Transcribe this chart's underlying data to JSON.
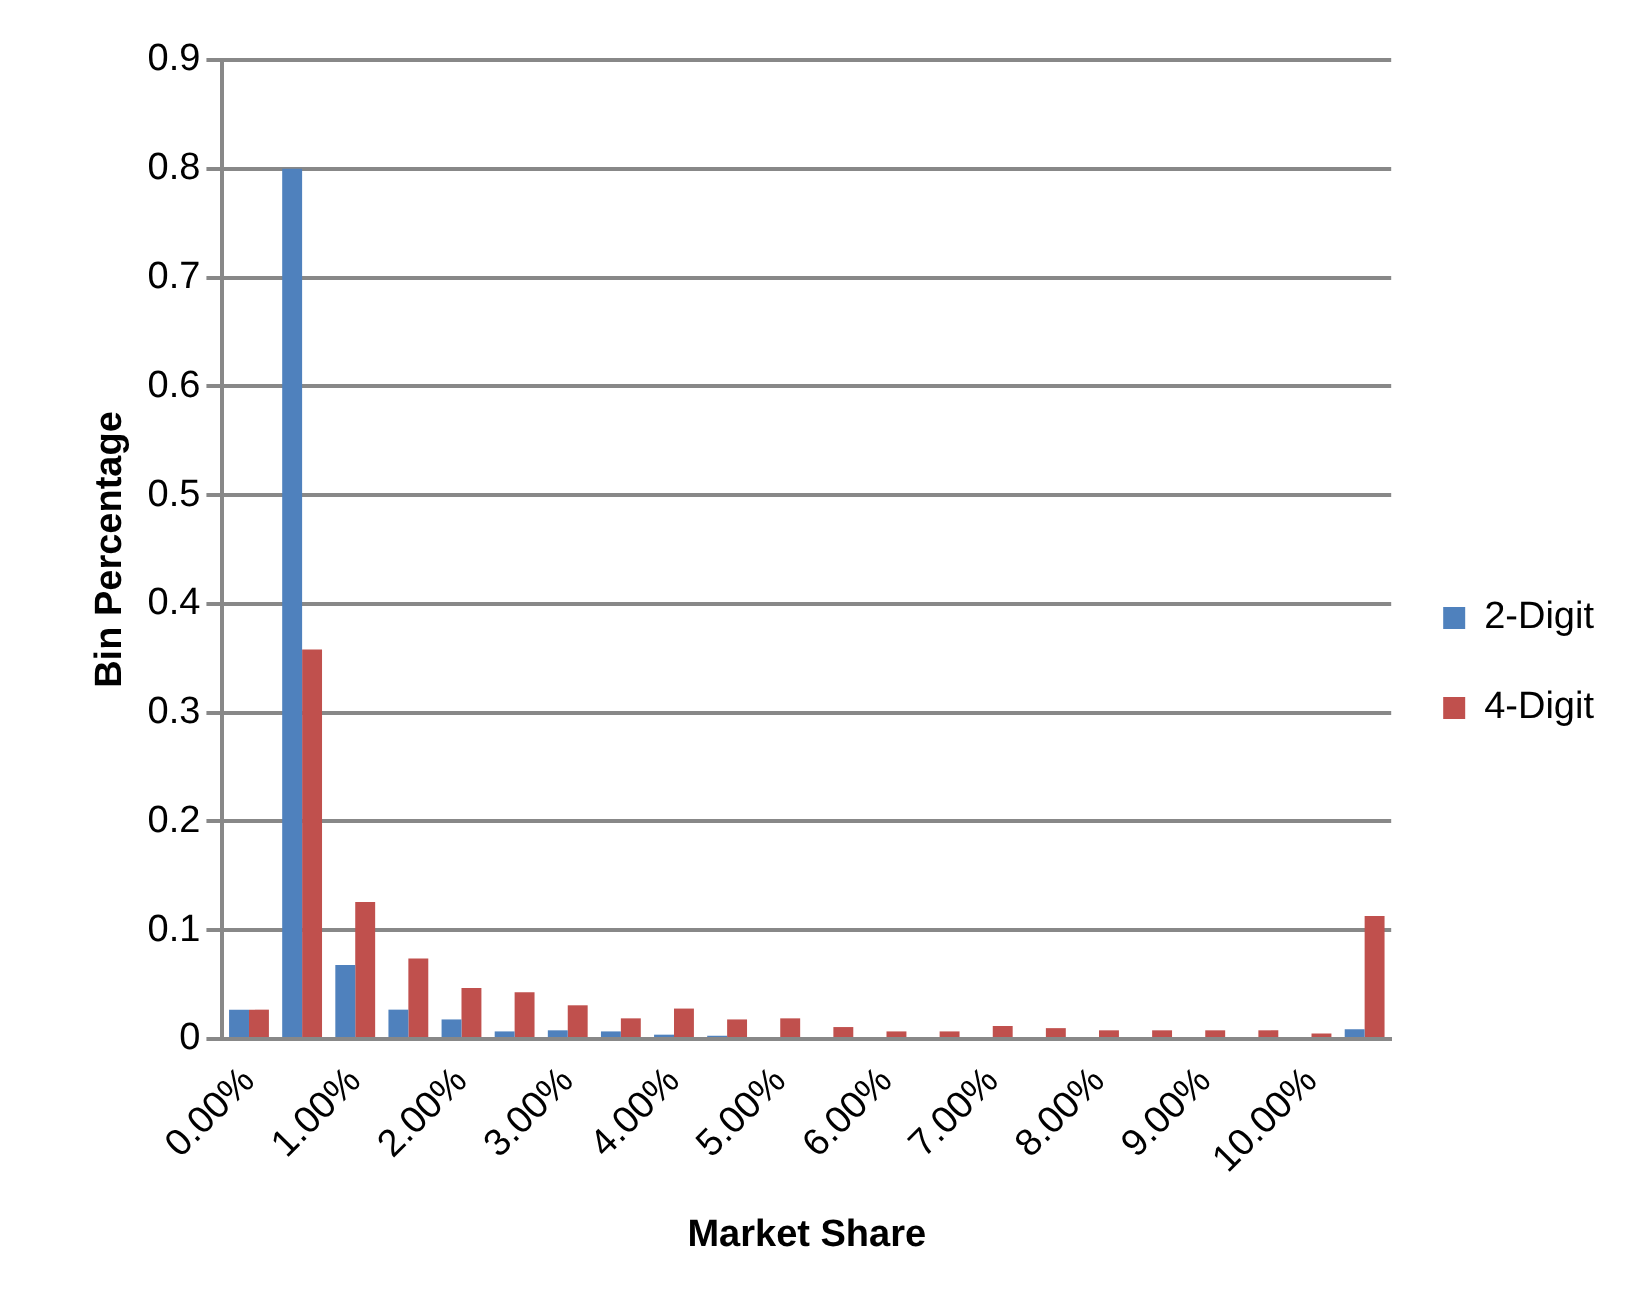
{
  "chart_data": {
    "type": "bar",
    "xlabel": "Market Share",
    "ylabel": "Bin Percentage",
    "categories": [
      "0.00%",
      null,
      "1.00%",
      null,
      "2.00%",
      null,
      "3.00%",
      null,
      "4.00%",
      null,
      "5.00%",
      null,
      "6.00%",
      null,
      "7.00%",
      null,
      "8.00%",
      null,
      "9.00%",
      null,
      "10.00%",
      null
    ],
    "series": [
      {
        "name": "2-Digit",
        "color": "#4f81bd",
        "values": [
          0.027,
          0.8,
          0.068,
          0.027,
          0.018,
          0.007,
          0.008,
          0.007,
          0.004,
          0.003,
          0,
          0,
          0,
          0,
          0,
          0,
          0,
          0,
          0,
          0,
          0,
          0.009
        ]
      },
      {
        "name": "4-Digit",
        "color": "#c0504d",
        "values": [
          0.027,
          0.358,
          0.126,
          0.074,
          0.047,
          0.043,
          0.031,
          0.019,
          0.028,
          0.018,
          0.019,
          0.011,
          0.007,
          0.007,
          0.012,
          0.01,
          0.008,
          0.008,
          0.008,
          0.008,
          0.005,
          0.113
        ]
      }
    ],
    "ylim": [
      0,
      0.9
    ],
    "yticks": [
      0,
      0.1,
      0.2,
      0.3,
      0.4,
      0.5,
      0.6,
      0.7,
      0.8,
      0.9
    ],
    "grid": "y",
    "legend": "right"
  }
}
